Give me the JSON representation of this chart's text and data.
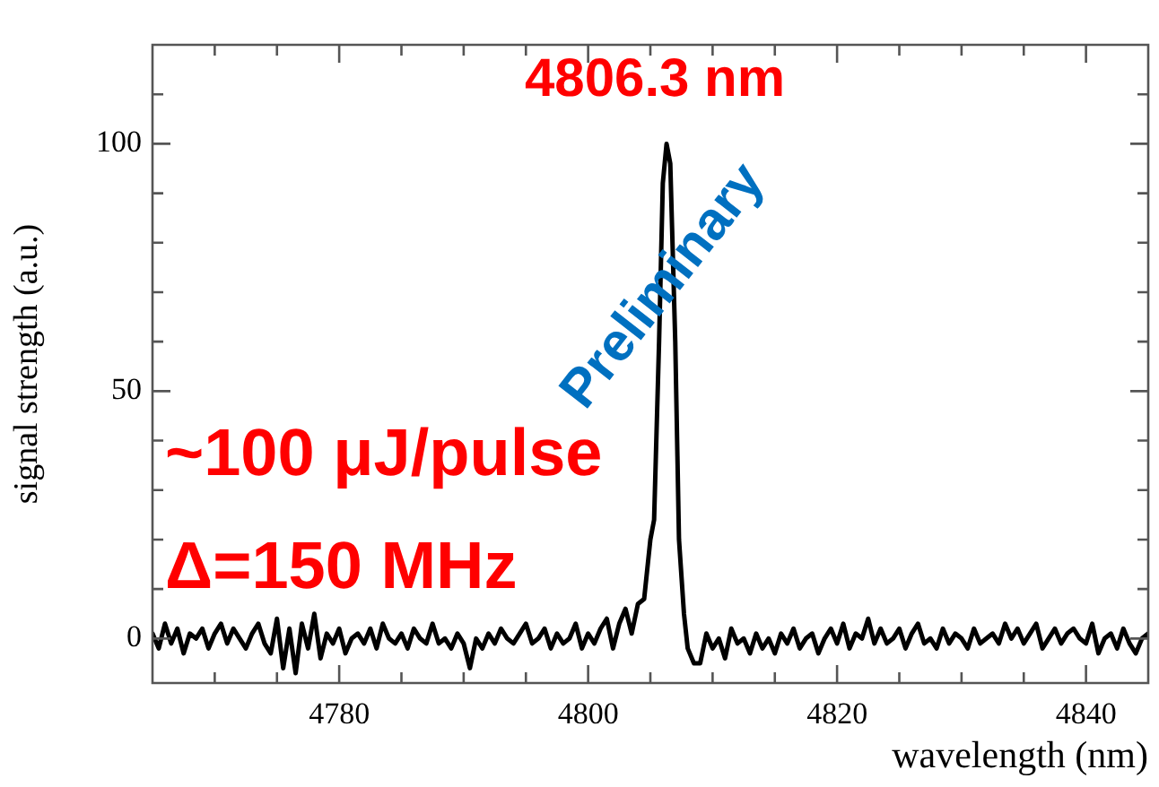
{
  "chart_data": {
    "type": "line",
    "xlabel": "wavelength (nm)",
    "ylabel": "signal strength (a.u.)",
    "annotations": [
      "4806.3 nm",
      "Preliminary",
      "~100 μJ/pulse",
      "Δ=150 MHz"
    ],
    "xlim": [
      4765,
      4845
    ],
    "ylim": [
      -9,
      120
    ],
    "xticks": [
      {
        "value": 4770,
        "label": null
      },
      {
        "value": 4775,
        "label": null
      },
      4780,
      {
        "value": 4785,
        "label": null
      },
      {
        "value": 4790,
        "label": null
      },
      {
        "value": 4795,
        "label": null
      },
      4800,
      {
        "value": 4805,
        "label": null
      },
      {
        "value": 4810,
        "label": null
      },
      {
        "value": 4815,
        "label": null
      },
      4820,
      {
        "value": 4825,
        "label": null
      },
      {
        "value": 4830,
        "label": null
      },
      {
        "value": 4835,
        "label": null
      },
      4840
    ],
    "yticks": [
      0,
      {
        "value": 10,
        "label": null
      },
      {
        "value": 20,
        "label": null
      },
      {
        "value": 30,
        "label": null
      },
      {
        "value": 40,
        "label": null
      },
      50,
      {
        "value": 60,
        "label": null
      },
      {
        "value": 70,
        "label": null
      },
      {
        "value": 80,
        "label": null
      },
      {
        "value": 90,
        "label": null
      },
      100,
      {
        "value": 110,
        "label": null
      }
    ],
    "grid": false,
    "legend": false,
    "marker": "none",
    "line_style": "solid",
    "series": [
      {
        "color": "#000000",
        "x": [
          4765,
          4765.5,
          4766,
          4766.5,
          4767,
          4767.5,
          4768,
          4768.5,
          4769,
          4769.5,
          4770,
          4770.5,
          4771,
          4771.5,
          4772,
          4772.5,
          4773,
          4773.5,
          4774,
          4774.5,
          4775,
          4775.5,
          4776,
          4776.5,
          4777,
          4777.5,
          4778,
          4778.5,
          4779,
          4779.5,
          4780,
          4780.5,
          4781,
          4781.5,
          4782,
          4782.5,
          4783,
          4783.5,
          4784,
          4784.5,
          4785,
          4785.5,
          4786,
          4786.5,
          4787,
          4787.5,
          4788,
          4788.5,
          4789,
          4789.5,
          4790,
          4790.5,
          4791,
          4791.5,
          4792,
          4792.5,
          4793,
          4793.5,
          4794,
          4794.5,
          4795,
          4795.5,
          4796,
          4796.5,
          4797,
          4797.5,
          4798,
          4798.5,
          4799,
          4799.5,
          4800,
          4800.5,
          4801,
          4801.5,
          4802,
          4802.5,
          4803,
          4803.5,
          4804,
          4804.5,
          4805,
          4805.3,
          4805.7,
          4806,
          4806.3,
          4806.6,
          4807,
          4807.3,
          4807.7,
          4808,
          4808.5,
          4809,
          4809.5,
          4810,
          4810.5,
          4811,
          4811.5,
          4812,
          4812.5,
          4813,
          4813.5,
          4814,
          4814.5,
          4815,
          4815.5,
          4816,
          4816.5,
          4817,
          4817.5,
          4818,
          4818.5,
          4819,
          4819.5,
          4820,
          4820.5,
          4821,
          4821.5,
          4822,
          4822.5,
          4823,
          4823.5,
          4824,
          4824.5,
          4825,
          4825.5,
          4826,
          4826.5,
          4827,
          4827.5,
          4828,
          4828.5,
          4829,
          4829.5,
          4830,
          4830.5,
          4831,
          4831.5,
          4832,
          4832.5,
          4833,
          4833.5,
          4834,
          4834.5,
          4835,
          4835.5,
          4836,
          4836.5,
          4837,
          4837.5,
          4838,
          4838.5,
          4839,
          4839.5,
          4840,
          4840.5,
          4841,
          4841.5,
          4842,
          4842.5,
          4843,
          4843.5,
          4844,
          4844.5,
          4845
        ],
        "values": [
          1,
          -2,
          3,
          -1,
          2,
          -3,
          1,
          0,
          2,
          -2,
          1,
          3,
          -1,
          2,
          0,
          -2,
          1,
          3,
          -1,
          -3,
          4,
          -6,
          2,
          -7,
          3,
          -2,
          5,
          -4,
          1,
          -1,
          2,
          -3,
          0,
          1,
          -1,
          2,
          -2,
          3,
          0,
          -1,
          1,
          -2,
          2,
          0,
          -1,
          3,
          -1,
          0,
          -2,
          1,
          -1,
          -6,
          0,
          -2,
          1,
          -1,
          2,
          0,
          -1,
          1,
          3,
          -1,
          0,
          2,
          -2,
          1,
          -1,
          0,
          3,
          -2,
          1,
          -1,
          2,
          4,
          -2,
          3,
          6,
          1,
          7,
          8,
          20,
          24,
          60,
          92,
          100,
          96,
          60,
          20,
          5,
          -2,
          -5,
          -5,
          1,
          -2,
          0,
          -4,
          2,
          -1,
          0,
          -3,
          1,
          -2,
          0,
          -3,
          1,
          -1,
          2,
          -2,
          0,
          1,
          -3,
          0,
          2,
          -1,
          3,
          -2,
          1,
          0,
          4,
          -1,
          2,
          -1,
          0,
          2,
          -2,
          1,
          3,
          -1,
          0,
          -2,
          2,
          -1,
          1,
          0,
          -2,
          2,
          -1,
          0,
          1,
          -1,
          3,
          0,
          2,
          -1,
          1,
          3,
          -2,
          0,
          2,
          -1,
          1,
          2,
          0,
          -1,
          3,
          -3,
          0,
          1,
          -2,
          2,
          -1,
          -3,
          0,
          1
        ]
      }
    ]
  }
}
